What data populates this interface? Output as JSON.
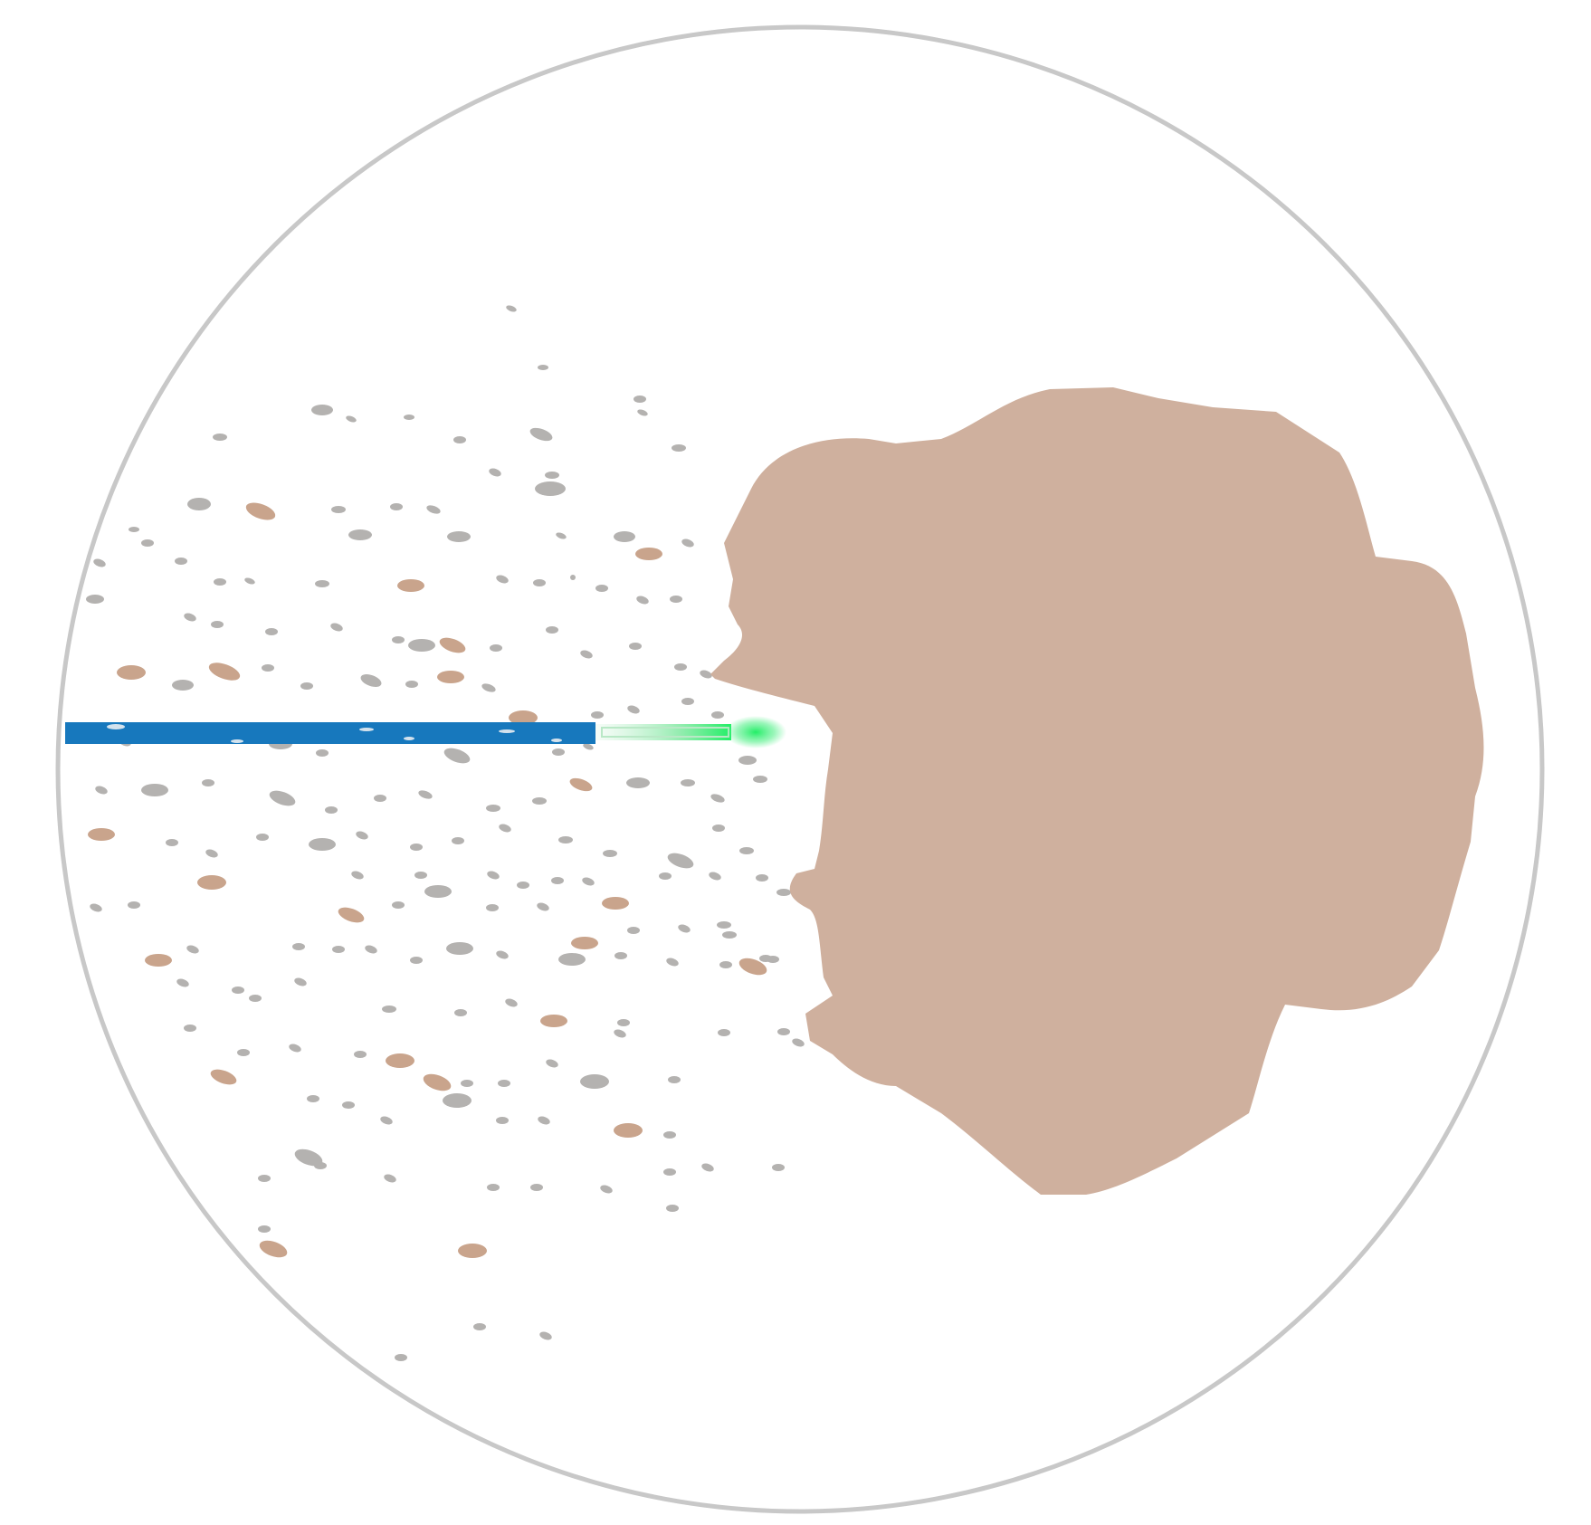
{
  "colors": {
    "background": "#ffffff",
    "circle_outline": "#c8c8c8",
    "target_mass": "#cfb09e",
    "probe": "#1778bd",
    "beam": "#22ee66",
    "particle_gray": "#b4b2b0",
    "particle_tan": "#c9a48c"
  }
}
